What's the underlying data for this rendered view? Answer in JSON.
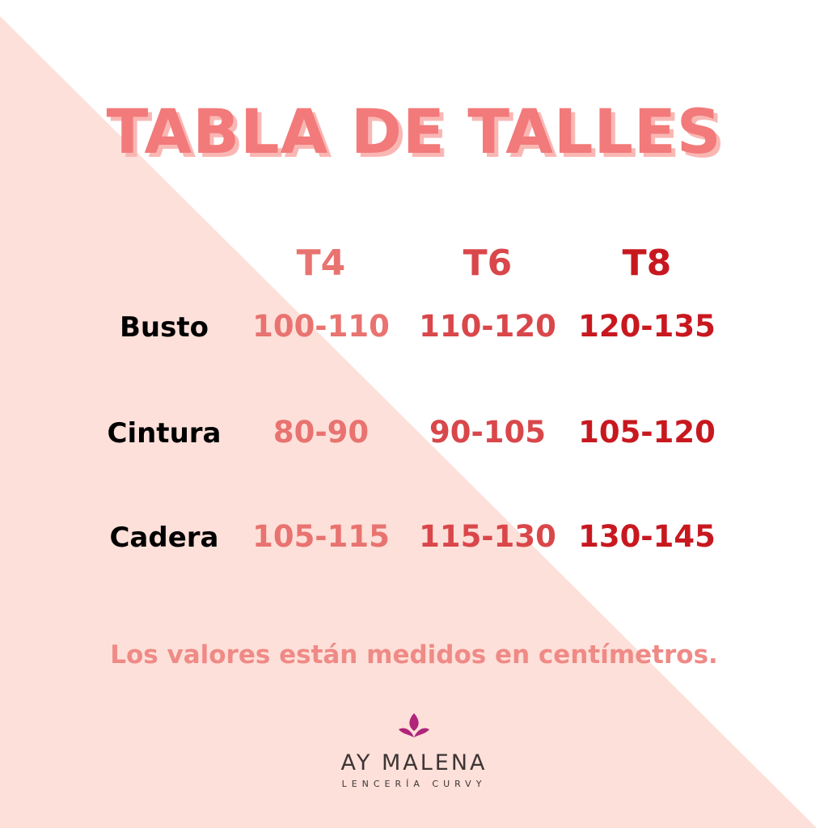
{
  "colors": {
    "background": "#ffffff",
    "triangle": "#fde0d9",
    "title": "#f27a7a",
    "t4": "#e87370",
    "t6": "#d9474b",
    "t8": "#c8181f",
    "logo_mark": "#b0247a"
  },
  "title": "TABLA DE TALLES",
  "columns": [
    "T4",
    "T6",
    "T8"
  ],
  "rows": [
    {
      "label": "Busto",
      "values": [
        "100-110",
        "110-120",
        "120-135"
      ]
    },
    {
      "label": "Cintura",
      "values": [
        "80-90",
        "90-105",
        "105-120"
      ]
    },
    {
      "label": "Cadera",
      "values": [
        "105-115",
        "115-130",
        "130-145"
      ]
    }
  ],
  "note": "Los valores están medidos en centímetros.",
  "logo": {
    "name": "AY MALENA",
    "tagline": "LENCERÍA CURVY",
    "icon": "flower-drop-icon"
  }
}
